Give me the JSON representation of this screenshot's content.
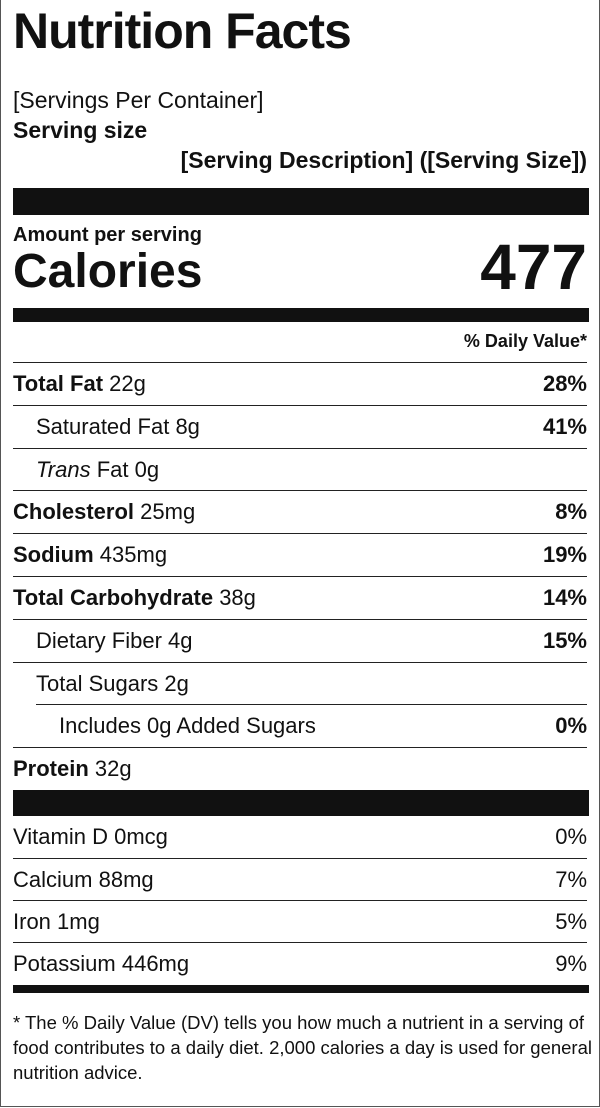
{
  "header": {
    "title": "Nutrition Facts",
    "servings": "[Servings Per Container]",
    "serving_size_label": "Serving size",
    "serving_size": "[Serving Description] ([Serving Size])"
  },
  "calories": {
    "amount_label": "Amount per serving",
    "label": "Calories",
    "value": "477"
  },
  "daily_value_header": "% Daily Value*",
  "nutrients": [
    {
      "label": "Total Fat",
      "amount": "22g",
      "dv": "28%",
      "bold": true,
      "indent": 0
    },
    {
      "label": "Saturated Fat",
      "amount": "8g",
      "dv": "41%",
      "bold": false,
      "indent": 1
    },
    {
      "italic": "Trans",
      "label": "Fat",
      "amount": "0g",
      "bold": false,
      "indent": 1
    },
    {
      "label": "Cholesterol",
      "amount": "25mg",
      "dv": "8%",
      "bold": true,
      "indent": 0
    },
    {
      "label": "Sodium",
      "amount": "435mg",
      "dv": "19%",
      "bold": true,
      "indent": 0
    },
    {
      "label": "Total Carbohydrate",
      "amount": "38g",
      "dv": "14%",
      "bold": true,
      "indent": 0
    },
    {
      "label": "Dietary Fiber",
      "amount": "4g",
      "dv": "15%",
      "bold": false,
      "indent": 1
    },
    {
      "label": "Total Sugars",
      "amount": "2g",
      "bold": false,
      "indent": 1
    },
    {
      "label": "Includes 0g Added Sugars",
      "dv": "0%",
      "bold": false,
      "indent": 2
    },
    {
      "label": "Protein",
      "amount": "32g",
      "bold": true,
      "indent": 0
    }
  ],
  "vitamins": [
    {
      "label": "Vitamin D",
      "amount": "0mcg",
      "dv": "0%"
    },
    {
      "label": "Calcium",
      "amount": "88mg",
      "dv": "7%"
    },
    {
      "label": "Iron",
      "amount": "1mg",
      "dv": "5%"
    },
    {
      "label": "Potassium",
      "amount": "446mg",
      "dv": "9%"
    }
  ],
  "footnote": "* The % Daily Value (DV) tells you how much a nutrient in a serving of food contributes to a daily diet. 2,000 calories a day is used for general nutrition advice."
}
